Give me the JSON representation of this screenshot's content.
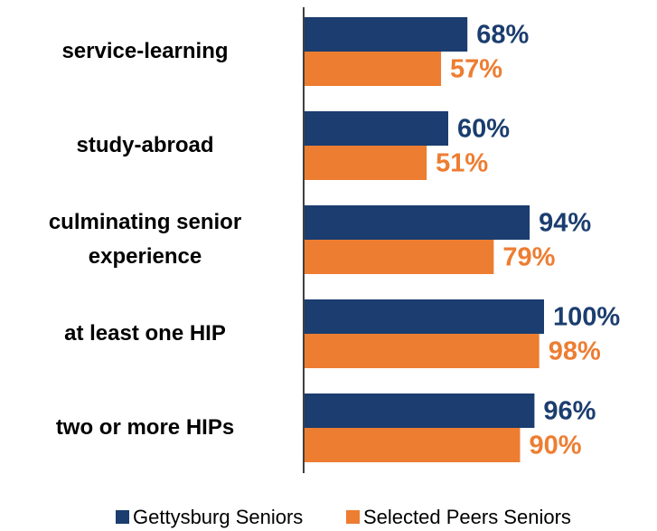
{
  "chart_data": {
    "type": "bar",
    "orientation": "horizontal",
    "categories": [
      "service-learning",
      "study-abroad",
      "culminating senior experience",
      "at least one HIP",
      "two or more HIPs"
    ],
    "series": [
      {
        "name": "Gettysburg Seniors",
        "color": "#1b3d6f",
        "values": [
          68,
          60,
          94,
          100,
          96
        ],
        "value_labels": [
          "68%",
          "60%",
          "94%",
          "100%",
          "96%"
        ]
      },
      {
        "name": "Selected Peers Seniors",
        "color": "#ed7d31",
        "values": [
          57,
          51,
          79,
          98,
          90
        ],
        "value_labels": [
          "57%",
          "51%",
          "79%",
          "98%",
          "90%"
        ]
      }
    ],
    "xlim": [
      0,
      100
    ],
    "legend": "bottom"
  }
}
